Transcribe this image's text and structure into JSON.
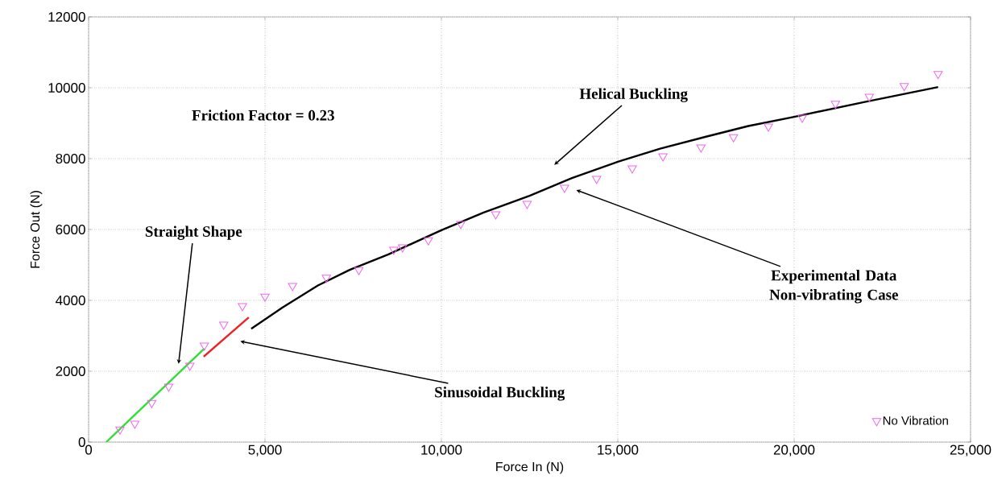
{
  "chart_data": {
    "type": "line",
    "xlabel": "Force In (N)",
    "ylabel": "Force Out (N)",
    "xlim": [
      0,
      25000
    ],
    "ylim": [
      0,
      12000
    ],
    "xticks": [
      {
        "value": 0,
        "label": "0"
      },
      {
        "value": 5000,
        "label": "5,000"
      },
      {
        "value": 10000,
        "label": "10,000"
      },
      {
        "value": 15000,
        "label": "15,000"
      },
      {
        "value": 20000,
        "label": "20,000"
      },
      {
        "value": 25000,
        "label": "25,000"
      }
    ],
    "yticks": [
      0,
      2000,
      4000,
      6000,
      8000,
      10000,
      12000
    ],
    "grid": true,
    "legend": "bottom right",
    "series": [
      {
        "color": "#33dd33",
        "x": [
          500,
          3280
        ],
        "values": [
          0,
          2640
        ]
      },
      {
        "color": "#ee2222",
        "x": [
          3260,
          4540
        ],
        "values": [
          2410,
          3520
        ]
      },
      {
        "color": "#000000",
        "x": [
          4610,
          5500,
          6500,
          7400,
          8500,
          10000,
          11200,
          12500,
          13700,
          15000,
          16200,
          17500,
          18700,
          20000,
          22000,
          24080
        ],
        "values": [
          3200,
          3800,
          4420,
          4860,
          5300,
          5980,
          6480,
          6950,
          7450,
          7910,
          8280,
          8620,
          8920,
          9180,
          9600,
          10020
        ]
      },
      {
        "type": "scatter",
        "name": "No Vibration",
        "color": "#ee66ee",
        "marker": "triangle",
        "x": [
          890,
          1310,
          1790,
          2270,
          2870,
          3280,
          3830,
          4360,
          5000,
          5780,
          6740,
          7660,
          8650,
          8900,
          9630,
          10550,
          11540,
          12430,
          13490,
          14400,
          15410,
          16280,
          17360,
          18280,
          19270,
          20230,
          21170,
          22130,
          23120,
          24080
        ],
        "values": [
          360,
          520,
          1110,
          1570,
          2160,
          2730,
          3320,
          3840,
          4110,
          4410,
          4640,
          4860,
          5430,
          5500,
          5700,
          6160,
          6430,
          6730,
          7180,
          7430,
          7730,
          8070,
          8320,
          8610,
          8910,
          9160,
          9550,
          9750,
          10050,
          10390
        ]
      }
    ],
    "annotations": [
      "Friction Factor = 0.23",
      "Helical Buckling",
      "Experimental Data Non-vibrating Case",
      "Straight Shape",
      "Sinusoidal Buckling"
    ]
  }
}
